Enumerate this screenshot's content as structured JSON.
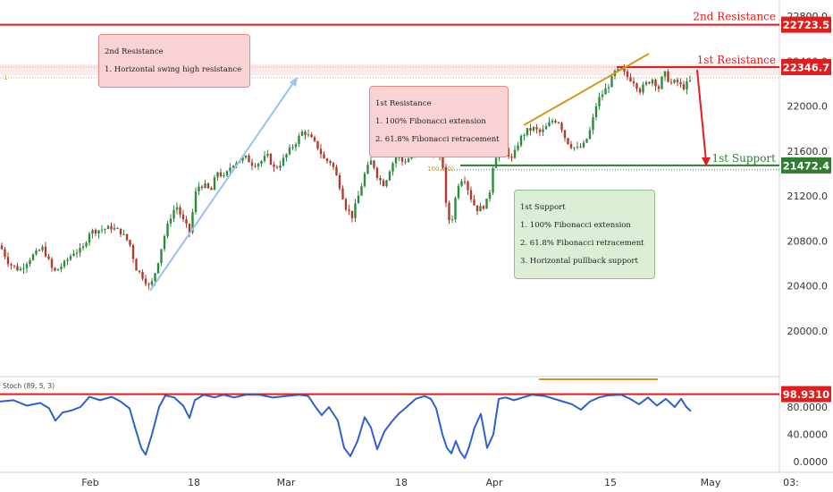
{
  "chart_data": [
    {
      "type": "candlestick",
      "yticks": [
        "22800.0",
        "22400.0",
        "22000.0",
        "21600.0",
        "21200.0",
        "20800.0",
        "20400.0",
        "20000.0"
      ],
      "ytick_values": [
        22800,
        22400,
        22000,
        21600,
        21200,
        20800,
        20400,
        20000
      ],
      "xticks": [
        "Feb",
        "18",
        "Mar",
        "18",
        "Apr",
        "15",
        "May",
        "03:"
      ],
      "ylim": [
        19610,
        22930
      ],
      "levels": [
        {
          "name": "2nd Resistance",
          "value": 22723.5,
          "label": "22723.5",
          "color": "#e11d1d"
        },
        {
          "name": "1st Resistance",
          "value": 22346.7,
          "label": "22346.7",
          "color": "#e11d1d"
        },
        {
          "name": "1st Support",
          "value": 21472.4,
          "label": "21472.4",
          "color": "#2e7d32"
        }
      ],
      "fib_labels": [
        "1",
        "100.0(0)"
      ],
      "close_path": [
        [
          0,
          20760
        ],
        [
          10,
          20600
        ],
        [
          22,
          20540
        ],
        [
          35,
          20660
        ],
        [
          48,
          20740
        ],
        [
          60,
          20520
        ],
        [
          72,
          20600
        ],
        [
          82,
          20700
        ],
        [
          92,
          20720
        ],
        [
          100,
          20880
        ],
        [
          112,
          20900
        ],
        [
          125,
          20920
        ],
        [
          135,
          20880
        ],
        [
          145,
          20780
        ],
        [
          152,
          20560
        ],
        [
          160,
          20480
        ],
        [
          168,
          20380
        ],
        [
          175,
          20560
        ],
        [
          183,
          20820
        ],
        [
          190,
          21000
        ],
        [
          197,
          21120
        ],
        [
          205,
          20980
        ],
        [
          212,
          20880
        ],
        [
          220,
          21280
        ],
        [
          228,
          21300
        ],
        [
          236,
          21240
        ],
        [
          243,
          21420
        ],
        [
          251,
          21360
        ],
        [
          259,
          21480
        ],
        [
          267,
          21520
        ],
        [
          275,
          21540
        ],
        [
          283,
          21480
        ],
        [
          291,
          21500
        ],
        [
          299,
          21560
        ],
        [
          307,
          21440
        ],
        [
          315,
          21500
        ],
        [
          323,
          21600
        ],
        [
          331,
          21680
        ],
        [
          339,
          21780
        ],
        [
          347,
          21720
        ],
        [
          355,
          21640
        ],
        [
          363,
          21520
        ],
        [
          371,
          21500
        ],
        [
          379,
          21320
        ],
        [
          387,
          21100
        ],
        [
          394,
          21020
        ],
        [
          401,
          21200
        ],
        [
          409,
          21420
        ],
        [
          416,
          21520
        ],
        [
          423,
          21360
        ],
        [
          430,
          21300
        ],
        [
          437,
          21460
        ],
        [
          444,
          21560
        ],
        [
          451,
          21500
        ],
        [
          458,
          21540
        ],
        [
          465,
          21560
        ],
        [
          472,
          21600
        ],
        [
          480,
          21620
        ],
        [
          488,
          21560
        ],
        [
          495,
          21520
        ],
        [
          500,
          21020
        ],
        [
          505,
          20960
        ],
        [
          512,
          21300
        ],
        [
          519,
          21380
        ],
        [
          526,
          21200
        ],
        [
          533,
          21080
        ],
        [
          540,
          21100
        ],
        [
          547,
          21180
        ],
        [
          552,
          21500
        ],
        [
          558,
          21620
        ],
        [
          565,
          21620
        ],
        [
          573,
          21520
        ],
        [
          581,
          21700
        ],
        [
          589,
          21780
        ],
        [
          597,
          21800
        ],
        [
          605,
          21760
        ],
        [
          612,
          21820
        ],
        [
          619,
          21880
        ],
        [
          626,
          21860
        ],
        [
          633,
          21700
        ],
        [
          640,
          21640
        ],
        [
          647,
          21620
        ],
        [
          654,
          21660
        ],
        [
          661,
          21800
        ],
        [
          668,
          22040
        ],
        [
          675,
          22120
        ],
        [
          682,
          22200
        ],
        [
          688,
          22300
        ],
        [
          695,
          22320
        ],
        [
          702,
          22260
        ],
        [
          709,
          22220
        ],
        [
          716,
          22140
        ],
        [
          723,
          22200
        ],
        [
          730,
          22240
        ],
        [
          737,
          22160
        ],
        [
          743,
          22300
        ],
        [
          750,
          22200
        ],
        [
          757,
          22220
        ],
        [
          764,
          22160
        ],
        [
          771,
          22220
        ]
      ],
      "stoch_ticks": [
        "80.0000",
        "40.0000",
        "0.0000"
      ],
      "stoch_tick_values": [
        80,
        40,
        0
      ],
      "stoch_level": {
        "value": 98.931,
        "label": "98.9310"
      },
      "stoch_label": "Stoch (89, 5, 3)",
      "stoch_path": [
        [
          0,
          88
        ],
        [
          15,
          90
        ],
        [
          30,
          82
        ],
        [
          45,
          86
        ],
        [
          55,
          78
        ],
        [
          62,
          60
        ],
        [
          70,
          72
        ],
        [
          80,
          75
        ],
        [
          90,
          80
        ],
        [
          100,
          95
        ],
        [
          112,
          90
        ],
        [
          125,
          95
        ],
        [
          135,
          88
        ],
        [
          145,
          78
        ],
        [
          150,
          55
        ],
        [
          158,
          20
        ],
        [
          163,
          10
        ],
        [
          170,
          40
        ],
        [
          178,
          80
        ],
        [
          185,
          97
        ],
        [
          195,
          94
        ],
        [
          205,
          82
        ],
        [
          212,
          64
        ],
        [
          218,
          90
        ],
        [
          228,
          98
        ],
        [
          240,
          94
        ],
        [
          250,
          98
        ],
        [
          262,
          94
        ],
        [
          275,
          98
        ],
        [
          290,
          98
        ],
        [
          305,
          94
        ],
        [
          320,
          96
        ],
        [
          335,
          98
        ],
        [
          345,
          96
        ],
        [
          352,
          82
        ],
        [
          360,
          68
        ],
        [
          368,
          80
        ],
        [
          378,
          60
        ],
        [
          385,
          20
        ],
        [
          392,
          8
        ],
        [
          400,
          30
        ],
        [
          408,
          65
        ],
        [
          415,
          50
        ],
        [
          422,
          18
        ],
        [
          430,
          44
        ],
        [
          438,
          58
        ],
        [
          446,
          70
        ],
        [
          455,
          80
        ],
        [
          465,
          92
        ],
        [
          475,
          96
        ],
        [
          482,
          92
        ],
        [
          488,
          78
        ],
        [
          495,
          40
        ],
        [
          500,
          20
        ],
        [
          505,
          12
        ],
        [
          510,
          30
        ],
        [
          515,
          14
        ],
        [
          520,
          5
        ],
        [
          525,
          22
        ],
        [
          531,
          50
        ],
        [
          538,
          70
        ],
        [
          545,
          20
        ],
        [
          552,
          40
        ],
        [
          558,
          92
        ],
        [
          566,
          94
        ],
        [
          575,
          90
        ],
        [
          585,
          94
        ],
        [
          595,
          98
        ],
        [
          610,
          96
        ],
        [
          625,
          90
        ],
        [
          640,
          84
        ],
        [
          650,
          76
        ],
        [
          660,
          88
        ],
        [
          670,
          94
        ],
        [
          680,
          97
        ],
        [
          695,
          98
        ],
        [
          705,
          92
        ],
        [
          715,
          84
        ],
        [
          725,
          94
        ],
        [
          735,
          82
        ],
        [
          745,
          92
        ],
        [
          755,
          80
        ],
        [
          762,
          92
        ],
        [
          768,
          80
        ],
        [
          773,
          74
        ]
      ]
    }
  ],
  "annotations": {
    "res2": {
      "title": "2nd Resistance",
      "line1": "1. Horizontal swing high resistance"
    },
    "res1": {
      "title": "1st Resistance",
      "line1": "1. 100% Fibonacci extension",
      "line2": "2. 61.8% Fibonacci retracement"
    },
    "sup1": {
      "title": "1st Support",
      "line1": "1. 100% Fibonacci extension",
      "line2": "2. 61.8% Fibonacci retracement",
      "line3": "3. Horizontal pullback support"
    }
  },
  "colors": {
    "up": "#2e8b3e",
    "down": "#b03a2e",
    "resistance": "#e11d1d",
    "support": "#2e7d32",
    "stoch": "#2f5fcf",
    "trend": "#d19a1f",
    "arrow": "#9cc0f0"
  }
}
